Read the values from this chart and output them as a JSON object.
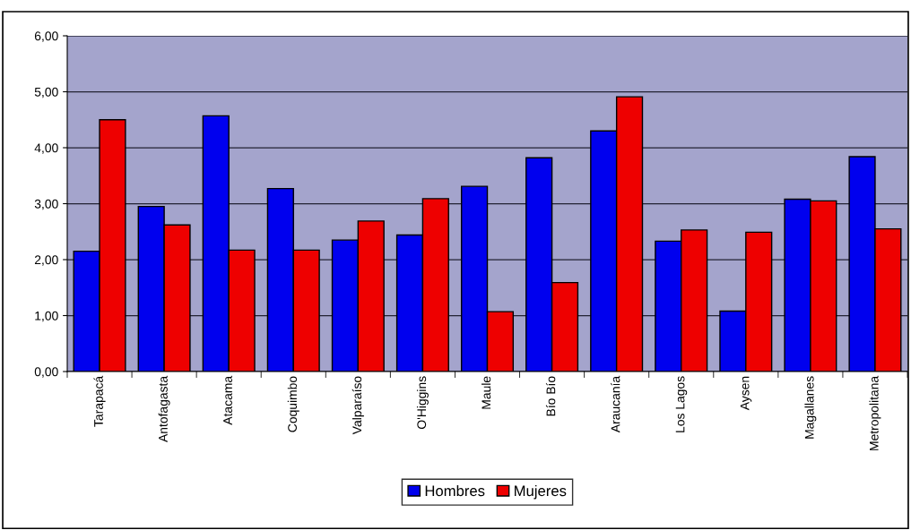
{
  "chart_data": {
    "type": "bar",
    "categories": [
      "Tarapacá",
      "Antofagasta",
      "Atacama",
      "Coquimbo",
      "Valparaíso",
      "O'Higgins",
      "Maule",
      "Bío Bío",
      "Araucanía",
      "Los Lagos",
      "Aysen",
      "Magallanes",
      "Metropolitana"
    ],
    "series": [
      {
        "name": "Hombres",
        "color": "#0000ee",
        "values": [
          2.15,
          2.95,
          4.57,
          3.27,
          2.35,
          2.44,
          3.31,
          3.82,
          4.3,
          2.33,
          1.08,
          3.08,
          3.84
        ]
      },
      {
        "name": "Mujeres",
        "color": "#ee0000",
        "values": [
          4.5,
          2.62,
          2.17,
          2.17,
          2.69,
          3.09,
          1.07,
          1.59,
          4.91,
          2.53,
          2.49,
          3.05,
          2.55
        ]
      }
    ],
    "ylim": [
      0,
      6
    ],
    "yticks": [
      {
        "value": 0,
        "label": "0,00"
      },
      {
        "value": 1,
        "label": "1,00"
      },
      {
        "value": 2,
        "label": "2,00"
      },
      {
        "value": 3,
        "label": "3,00"
      },
      {
        "value": 4,
        "label": "4,00"
      },
      {
        "value": 5,
        "label": "5,00"
      },
      {
        "value": 6,
        "label": "6,00"
      }
    ],
    "grid": "y",
    "legend": "bottom"
  }
}
